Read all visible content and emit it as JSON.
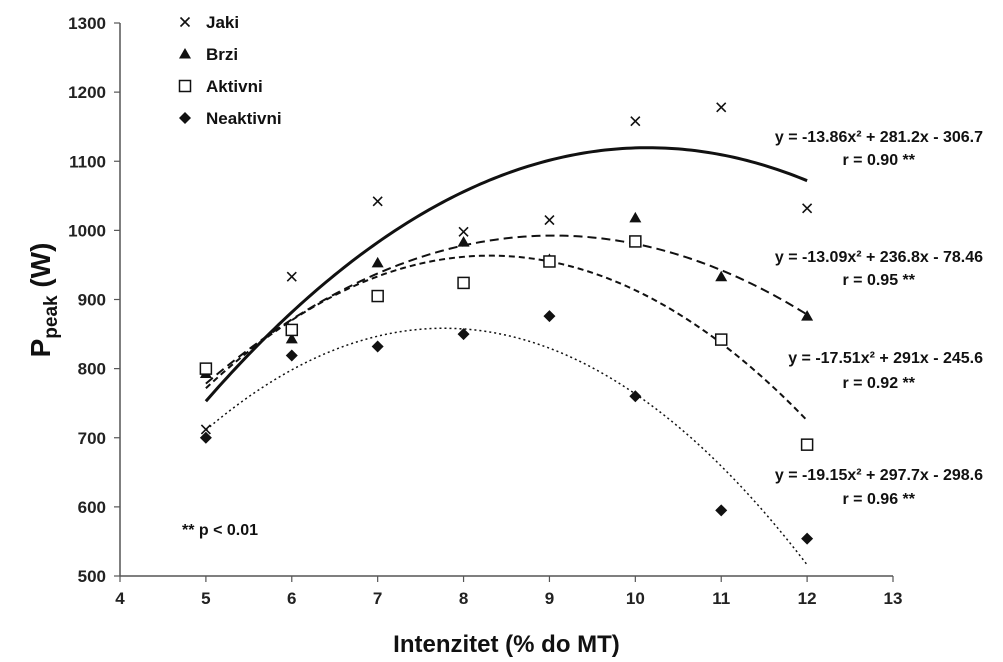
{
  "chart_data": {
    "type": "scatter",
    "xlabel": "Intenzitet (% do MT)",
    "ylabel_main": "P",
    "ylabel_sub": "peak",
    "ylabel_unit": "(W)",
    "xlim": [
      4,
      13
    ],
    "ylim": [
      500,
      1300
    ],
    "xticks": [
      4,
      5,
      6,
      7,
      8,
      9,
      10,
      11,
      12,
      13
    ],
    "yticks": [
      500,
      600,
      700,
      800,
      900,
      1000,
      1100,
      1200,
      1300
    ],
    "grid": false,
    "legend_position": "top-left",
    "annotation": "** p < 0.01",
    "series": [
      {
        "name": "Jaki",
        "marker": "cross",
        "x": [
          5,
          6,
          7,
          8,
          9,
          10,
          11,
          12
        ],
        "y": [
          712,
          933,
          1042,
          998,
          1015,
          1158,
          1178,
          1032
        ],
        "trend": {
          "a": -13.86,
          "b": 281.2,
          "c": -306.7,
          "style": "solid",
          "equation": "y = -13.86x² + 281.2x - 306.7",
          "r": "r = 0.90 **"
        }
      },
      {
        "name": "Brzi",
        "marker": "triangle",
        "x": [
          5,
          6,
          7,
          8,
          9,
          10,
          11,
          12
        ],
        "y": [
          793,
          843,
          953,
          983,
          958,
          1018,
          933,
          876
        ],
        "trend": {
          "a": -13.09,
          "b": 236.8,
          "c": -78.46,
          "style": "dashed",
          "equation": "y = -13.09x² + 236.8x - 78.46",
          "r": "r = 0.95 **"
        }
      },
      {
        "name": "Aktivni",
        "marker": "square",
        "x": [
          5,
          6,
          7,
          8,
          9,
          10,
          11,
          12
        ],
        "y": [
          800,
          856,
          905,
          924,
          955,
          984,
          842,
          690
        ],
        "trend": {
          "a": -17.51,
          "b": 291,
          "c": -245.6,
          "style": "dashed-fine",
          "equation": "y = -17.51x² + 291x - 245.6",
          "r": "r = 0.92 **"
        }
      },
      {
        "name": "Neaktivni",
        "marker": "diamond",
        "x": [
          5,
          6,
          7,
          8,
          9,
          10,
          11,
          12
        ],
        "y": [
          700,
          819,
          832,
          850,
          876,
          760,
          595,
          554
        ],
        "trend": {
          "a": -19.15,
          "b": 297.7,
          "c": -298.6,
          "style": "dotted",
          "equation": "y = -19.15x² + 297.7x - 298.6",
          "r": "r = 0.96 **"
        }
      }
    ]
  }
}
